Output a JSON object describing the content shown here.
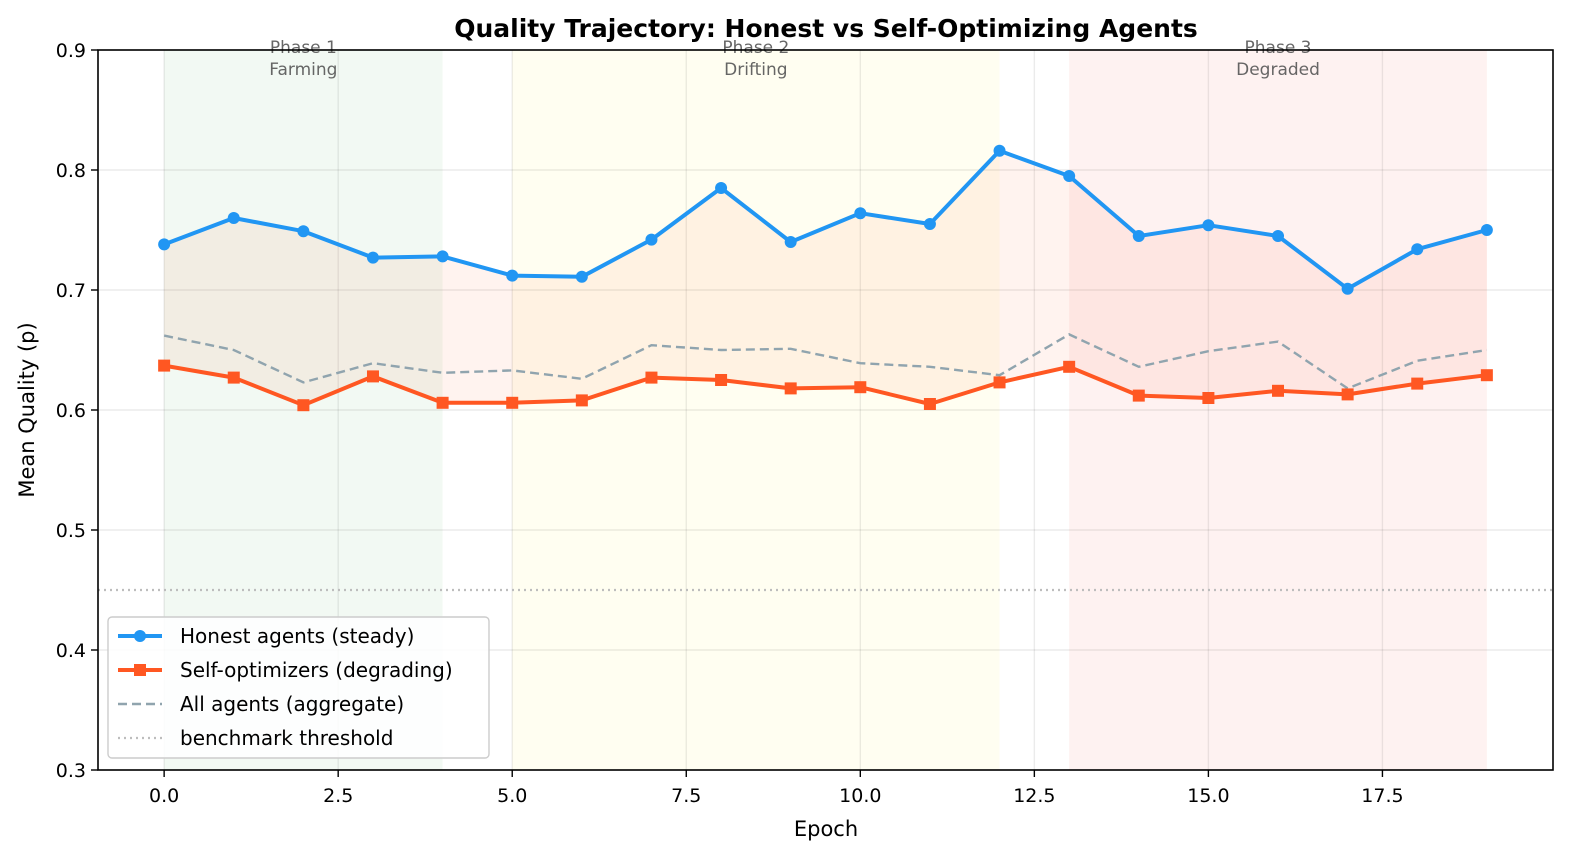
{
  "chart_data": {
    "type": "line",
    "title": "Quality Trajectory: Honest vs Self-Optimizing Agents",
    "xlabel": "Epoch",
    "ylabel": "Mean Quality (p)",
    "xlim": [
      -0.95,
      19.95
    ],
    "ylim": [
      0.3,
      0.9
    ],
    "xticks": [
      0.0,
      2.5,
      5.0,
      7.5,
      10.0,
      12.5,
      15.0,
      17.5
    ],
    "xtick_labels": [
      "0.0",
      "2.5",
      "5.0",
      "7.5",
      "10.0",
      "12.5",
      "15.0",
      "17.5"
    ],
    "yticks": [
      0.3,
      0.4,
      0.5,
      0.6,
      0.7,
      0.8,
      0.9
    ],
    "ytick_labels": [
      "0.3",
      "0.4",
      "0.5",
      "0.6",
      "0.7",
      "0.8",
      "0.9"
    ],
    "grid": true,
    "legend_position": "lower-left",
    "x": [
      0,
      1,
      2,
      3,
      4,
      5,
      6,
      7,
      8,
      9,
      10,
      11,
      12,
      13,
      14,
      15,
      16,
      17,
      18,
      19
    ],
    "series": [
      {
        "name": "Honest agents (steady)",
        "color": "#2196F3",
        "style": "solid",
        "marker": "circle",
        "values": [
          0.738,
          0.76,
          0.749,
          0.727,
          0.728,
          0.712,
          0.711,
          0.742,
          0.785,
          0.74,
          0.764,
          0.755,
          0.816,
          0.795,
          0.745,
          0.754,
          0.745,
          0.701,
          0.734,
          0.75
        ]
      },
      {
        "name": "Self-optimizers (degrading)",
        "color": "#FF5722",
        "style": "solid",
        "marker": "square",
        "values": [
          0.637,
          0.627,
          0.604,
          0.628,
          0.606,
          0.606,
          0.608,
          0.627,
          0.625,
          0.618,
          0.619,
          0.605,
          0.623,
          0.636,
          0.612,
          0.61,
          0.616,
          0.613,
          0.622,
          0.629
        ]
      },
      {
        "name": "All agents (aggregate)",
        "color": "#90A4AE",
        "style": "dashed",
        "marker": "none",
        "values": [
          0.662,
          0.65,
          0.623,
          0.639,
          0.631,
          0.633,
          0.626,
          0.654,
          0.65,
          0.651,
          0.639,
          0.636,
          0.629,
          0.663,
          0.636,
          0.649,
          0.657,
          0.618,
          0.641,
          0.65
        ]
      }
    ],
    "threshold": {
      "name": "benchmark threshold",
      "value": 0.45,
      "color": "#BDBDBD",
      "style": "dotted"
    },
    "phases": [
      {
        "label_line1": "Phase 1",
        "label_line2": "Farming",
        "x_start": 0,
        "x_end": 4,
        "color": "#4CAF50"
      },
      {
        "label_line1": "Phase 2",
        "label_line2": "Drifting",
        "x_start": 5,
        "x_end": 12,
        "color": "#FFEB3B"
      },
      {
        "label_line1": "Phase 3",
        "label_line2": "Degraded",
        "x_start": 13,
        "x_end": 19,
        "color": "#F44336"
      }
    ],
    "gap_fill_color": "#FF5722"
  }
}
